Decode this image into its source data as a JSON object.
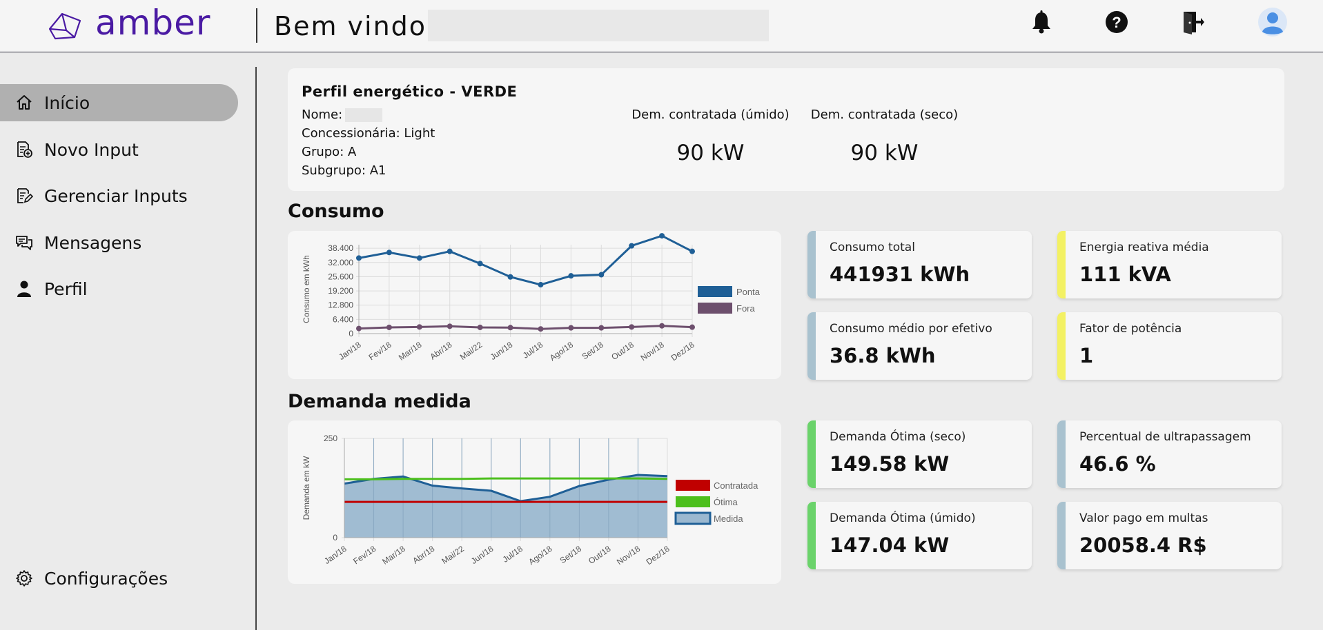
{
  "header": {
    "logo_text": "amber",
    "welcome": "Bem vindo,",
    "icons": [
      "bell-icon",
      "help-icon",
      "logout-icon",
      "user-avatar-icon"
    ]
  },
  "sidebar": {
    "items": [
      {
        "label": "Início",
        "icon": "home-icon",
        "active": true
      },
      {
        "label": "Novo Input",
        "icon": "add-document-icon"
      },
      {
        "label": "Gerenciar Inputs",
        "icon": "edit-document-icon"
      },
      {
        "label": "Mensagens",
        "icon": "messages-icon"
      },
      {
        "label": "Perfil",
        "icon": "user-icon"
      }
    ],
    "settings_label": "Configurações"
  },
  "profile": {
    "title": "Perfil energético - VERDE",
    "nome_label": "Nome:",
    "concessionaria": "Concessionária: Light",
    "grupo": "Grupo: A",
    "subgrupo": "Subgrupo: A1",
    "dem_umido_label": "Dem. contratada (úmido)",
    "dem_umido_value": "90 kW",
    "dem_seco_label": "Dem. contratada (seco)",
    "dem_seco_value": "90 kW"
  },
  "sections": {
    "consumo": "Consumo",
    "demanda": "Demanda medida"
  },
  "kpis": {
    "consumo_total": {
      "label": "Consumo total",
      "value": "441931 kWh"
    },
    "energia_reativa": {
      "label": "Energia reativa média",
      "value": "111 kVA"
    },
    "consumo_medio": {
      "label": "Consumo médio por efetivo",
      "value": "36.8 kWh"
    },
    "fator_potencia": {
      "label": "Fator de potência",
      "value": "1"
    },
    "demanda_otima_seco": {
      "label": "Demanda Ótima (seco)",
      "value": "149.58 kW"
    },
    "percentual_ultrapassagem": {
      "label": "Percentual de ultrapassagem",
      "value": "46.6 %"
    },
    "demanda_otima_umido": {
      "label": "Demanda Ótima (úmido)",
      "value": "147.04 kW"
    },
    "valor_multas": {
      "label": "Valor pago em multas",
      "value": "20058.4 R$"
    }
  },
  "colors": {
    "brand": "#4a1aa3",
    "blue_bar": "#a9c2cf",
    "yellow_bar": "#f3f163",
    "green_bar": "#6bd36b",
    "ponta": "#1f5f96",
    "fora": "#6d4f6d",
    "contratada": "#c00000",
    "otima": "#4cbf1c",
    "medida_fill": "#9bb8d0",
    "medida_line": "#1f5f96"
  },
  "chart_data": [
    {
      "type": "line",
      "title": "",
      "xlabel": "",
      "ylabel": "Consumo em kWh",
      "categories": [
        "Jan/18",
        "Fev/18",
        "Mar/18",
        "Abr/18",
        "Mai/22",
        "Jun/18",
        "Jul/18",
        "Ago/18",
        "Set/18",
        "Out/18",
        "Nov/18",
        "Dez/18"
      ],
      "yticks": [
        "0",
        "6.400",
        "12.800",
        "19.200",
        "25.600",
        "32.000",
        "38.400"
      ],
      "ylim": [
        0,
        40000
      ],
      "grid": true,
      "legend": "right",
      "series": [
        {
          "name": "Ponta",
          "values": [
            34000,
            36500,
            34000,
            37000,
            31500,
            25500,
            22000,
            26000,
            26500,
            39500,
            44000,
            37000
          ]
        },
        {
          "name": "Fora",
          "values": [
            2300,
            2800,
            3000,
            3300,
            2800,
            2700,
            2100,
            2600,
            2600,
            3000,
            3500,
            2900
          ]
        }
      ]
    },
    {
      "type": "area",
      "title": "",
      "xlabel": "",
      "ylabel": "Demanda em kW",
      "categories": [
        "Jan/18",
        "Fev/18",
        "Mar/18",
        "Abr/18",
        "Mai/22",
        "Jun/18",
        "Jul/18",
        "Ago/18",
        "Set/18",
        "Out/18",
        "Nov/18",
        "Dez/18"
      ],
      "yticks": [
        "0",
        "250"
      ],
      "ylim": [
        0,
        250
      ],
      "grid": true,
      "legend": "right",
      "series": [
        {
          "name": "Contratada",
          "values": [
            90,
            90,
            90,
            90,
            90,
            90,
            90,
            90,
            90,
            90,
            90,
            90
          ]
        },
        {
          "name": "Ótima",
          "values": [
            147,
            147,
            148,
            148,
            148,
            149,
            149,
            149,
            149,
            149,
            149,
            148
          ]
        },
        {
          "name": "Medida",
          "values": [
            136,
            148,
            154,
            131,
            124,
            118,
            92,
            103,
            130,
            146,
            158,
            155
          ]
        }
      ]
    }
  ]
}
